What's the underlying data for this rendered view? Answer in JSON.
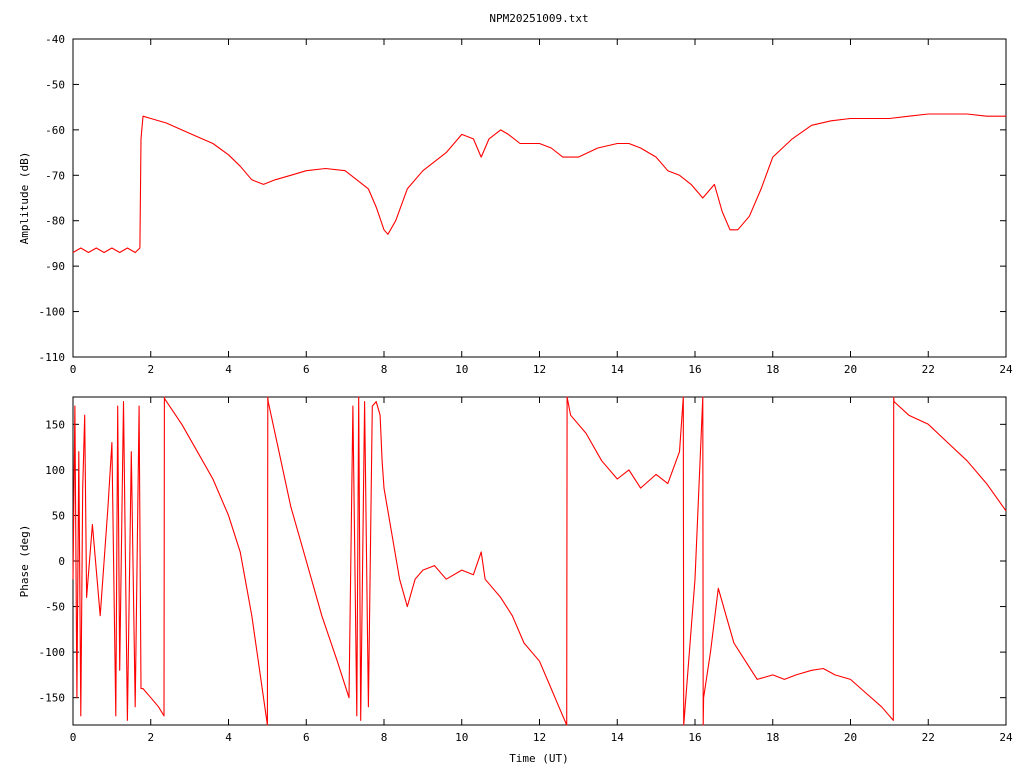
{
  "chart_data": [
    {
      "type": "line",
      "title": "NPM20251009.txt",
      "xlabel": "",
      "ylabel": "Amplitude (dB)",
      "xlim": [
        0,
        24
      ],
      "ylim": [
        -110,
        -40
      ],
      "x_ticks": [
        "0",
        "2",
        "4",
        "6",
        "8",
        "10",
        "12",
        "14",
        "16",
        "18",
        "20",
        "22",
        "24"
      ],
      "y_ticks": [
        "-40",
        "-50",
        "-60",
        "-70",
        "-80",
        "-90",
        "-100",
        "-110"
      ],
      "grid": false,
      "series_color": "#ff0000",
      "series": [
        {
          "name": "",
          "x": [
            0,
            0.2,
            0.4,
            0.6,
            0.8,
            1.0,
            1.2,
            1.4,
            1.6,
            1.72,
            1.75,
            1.8,
            2.0,
            2.4,
            2.8,
            3.2,
            3.6,
            4.0,
            4.3,
            4.6,
            4.9,
            5.2,
            5.6,
            6.0,
            6.5,
            7.0,
            7.3,
            7.6,
            7.8,
            8.0,
            8.1,
            8.3,
            8.6,
            9.0,
            9.3,
            9.6,
            10.0,
            10.3,
            10.5,
            10.7,
            11.0,
            11.2,
            11.5,
            12.0,
            12.3,
            12.6,
            13.0,
            13.5,
            14.0,
            14.3,
            14.6,
            15.0,
            15.3,
            15.6,
            15.9,
            16.2,
            16.5,
            16.7,
            16.9,
            17.1,
            17.4,
            17.7,
            18.0,
            18.5,
            19.0,
            19.5,
            20.0,
            20.5,
            21.0,
            21.5,
            22.0,
            22.5,
            23.0,
            23.5,
            24.0
          ],
          "values": [
            -87,
            -86,
            -87,
            -86,
            -87,
            -86,
            -87,
            -86,
            -87,
            -86,
            -62,
            -57,
            -57.5,
            -58.5,
            -60,
            -61.5,
            -63,
            -65.5,
            -68,
            -71,
            -72,
            -71,
            -70,
            -69,
            -68.5,
            -69,
            -71,
            -73,
            -77,
            -82,
            -83,
            -80,
            -73,
            -69,
            -67,
            -65,
            -61,
            -62,
            -66,
            -62,
            -60,
            -61,
            -63,
            -63,
            -64,
            -66,
            -66,
            -64,
            -63,
            -63,
            -64,
            -66,
            -69,
            -70,
            -72,
            -75,
            -72,
            -78,
            -82,
            -82,
            -79,
            -73,
            -66,
            -62,
            -59,
            -58,
            -57.5,
            -57.5,
            -57.5,
            -57,
            -56.5,
            -56.5,
            -56.5,
            -57,
            -57
          ]
        }
      ]
    },
    {
      "type": "line",
      "title": "",
      "xlabel": "Time (UT)",
      "ylabel": "Phase (deg)",
      "xlim": [
        0,
        24
      ],
      "ylim": [
        -180,
        180
      ],
      "x_ticks": [
        "0",
        "2",
        "4",
        "6",
        "8",
        "10",
        "12",
        "14",
        "16",
        "18",
        "20",
        "22",
        "24"
      ],
      "y_ticks": [
        "150",
        "100",
        "50",
        "0",
        "-50",
        "-100",
        "-150"
      ],
      "grid": false,
      "series_color": "#ff0000",
      "series": [
        {
          "name": "",
          "x": [
            0,
            0.05,
            0.1,
            0.15,
            0.2,
            0.25,
            0.3,
            0.35,
            0.5,
            0.7,
            0.9,
            1.0,
            1.1,
            1.15,
            1.2,
            1.3,
            1.4,
            1.5,
            1.6,
            1.7,
            1.75,
            1.8,
            2.0,
            2.2,
            2.34,
            2.35,
            2.36,
            2.8,
            3.2,
            3.6,
            4.0,
            4.3,
            4.6,
            4.8,
            5.0,
            5.01,
            5.02,
            5.3,
            5.6,
            6.0,
            6.4,
            6.8,
            7.1,
            7.2,
            7.3,
            7.35,
            7.4,
            7.5,
            7.6,
            7.7,
            7.8,
            7.9,
            7.95,
            8.0,
            8.2,
            8.4,
            8.6,
            8.8,
            9.0,
            9.3,
            9.6,
            10.0,
            10.3,
            10.5,
            10.6,
            10.8,
            11.0,
            11.3,
            11.6,
            12.0,
            12.3,
            12.5,
            12.7,
            12.71,
            12.8,
            13.2,
            13.6,
            14.0,
            14.3,
            14.6,
            15.0,
            15.3,
            15.6,
            15.7,
            15.71,
            15.72,
            16.0,
            16.2,
            16.21,
            16.22,
            16.4,
            16.6,
            16.8,
            17.0,
            17.3,
            17.6,
            18.0,
            18.3,
            18.6,
            19.0,
            19.3,
            19.6,
            20.0,
            20.4,
            20.8,
            21.1,
            21.11,
            21.12,
            21.5,
            22.0,
            22.5,
            23.0,
            23.5,
            24.0
          ],
          "values": [
            -20,
            170,
            -150,
            120,
            -170,
            80,
            160,
            -40,
            40,
            -60,
            60,
            130,
            -170,
            170,
            -120,
            175,
            -175,
            120,
            -160,
            170,
            -140,
            -140,
            -150,
            -160,
            -170,
            180,
            178,
            150,
            120,
            90,
            50,
            10,
            -60,
            -120,
            -180,
            180,
            175,
            120,
            60,
            0,
            -60,
            -110,
            -150,
            170,
            -170,
            180,
            -175,
            175,
            -160,
            170,
            175,
            160,
            110,
            80,
            30,
            -20,
            -50,
            -20,
            -10,
            -5,
            -20,
            -10,
            -15,
            10,
            -20,
            -30,
            -40,
            -60,
            -90,
            -110,
            -140,
            -160,
            -180,
            180,
            160,
            140,
            110,
            90,
            100,
            80,
            95,
            85,
            120,
            180,
            -180,
            -175,
            -20,
            180,
            -180,
            -150,
            -100,
            -30,
            -60,
            -90,
            -110,
            -130,
            -125,
            -130,
            -125,
            -120,
            -118,
            -125,
            -130,
            -145,
            -160,
            -175,
            180,
            175,
            160,
            150,
            130,
            110,
            85,
            55
          ]
        }
      ]
    }
  ]
}
